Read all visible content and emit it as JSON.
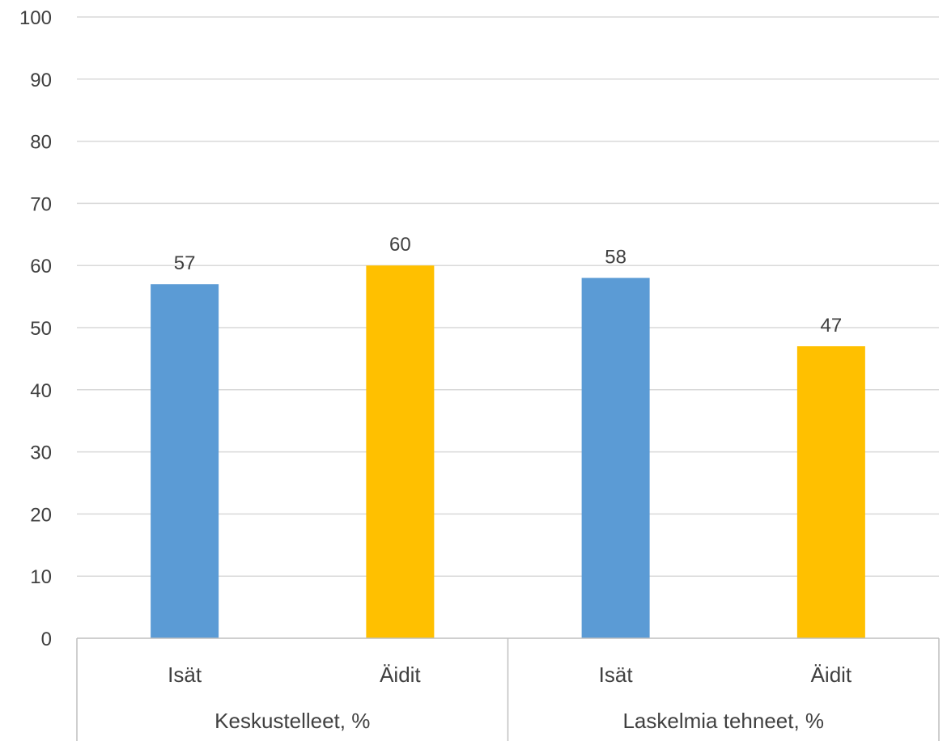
{
  "chart_data": {
    "type": "bar",
    "groups": [
      "Keskustelleet, %",
      "Laskelmia tehneet, %"
    ],
    "categories": [
      "Isät",
      "Äidit",
      "Isät",
      "Äidit"
    ],
    "values": [
      57,
      60,
      58,
      47
    ],
    "bar_colors": [
      "#5b9bd5",
      "#ffc000",
      "#5b9bd5",
      "#ffc000"
    ],
    "ylim": [
      0,
      100
    ],
    "yticks": [
      0,
      10,
      20,
      30,
      40,
      50,
      60,
      70,
      80,
      90,
      100
    ],
    "grid": true,
    "data_labels": true
  }
}
